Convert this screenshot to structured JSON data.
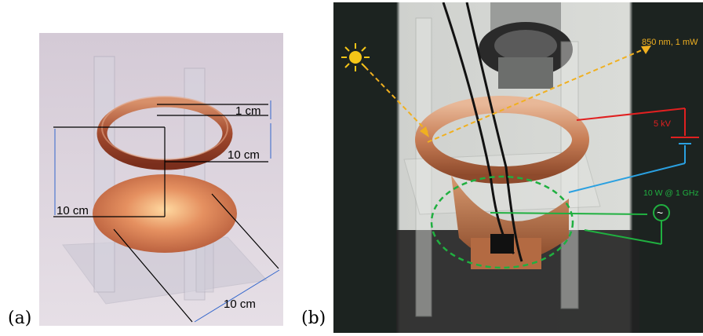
{
  "panel_a": {
    "label": "(a)",
    "dimensions": {
      "ring_thickness": "1 cm",
      "ring_diameter": "10 cm",
      "height": "10 cm",
      "base_width": "10 cm"
    }
  },
  "panel_b": {
    "label": "(b)",
    "annotations": {
      "laser": "850 nm, 1 mW",
      "voltage": "5 kV",
      "rf_source": "10 W @ 1 GHz",
      "ac_symbol": "~"
    },
    "colors": {
      "laser_arrow": "#f0b020",
      "hv_wire": "#e02020",
      "ground_wire": "#2aa0e0",
      "rf_wire": "#20b040",
      "sun_icon": "#f5c518"
    }
  }
}
